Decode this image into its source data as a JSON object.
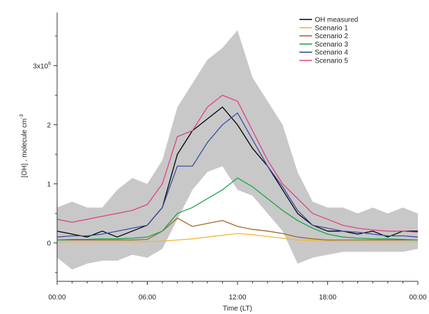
{
  "chart_data": {
    "type": "line",
    "xlabel": "Time (LT)",
    "ylabel": "[OH] , molecule cm",
    "ylabel_exponent": "-3",
    "xlim": [
      0,
      24
    ],
    "ylim": [
      -0.65,
      3.9
    ],
    "x_ticks": [
      {
        "value": 0,
        "label": "00:00"
      },
      {
        "value": 6,
        "label": "06:00"
      },
      {
        "value": 12,
        "label": "12:00"
      },
      {
        "value": 18,
        "label": "18:00"
      },
      {
        "value": 24,
        "label": "00:00"
      }
    ],
    "y_ticks": [
      {
        "value": 0,
        "label": "0"
      },
      {
        "value": 1,
        "label": "1"
      },
      {
        "value": 2,
        "label": "2"
      },
      {
        "value": 3,
        "label": "3x10",
        "exponent": "6"
      }
    ],
    "grid": false,
    "legend_position": "top-right",
    "uncertainty_band": {
      "color": "#c8c8c8",
      "x": [
        0,
        1,
        2,
        3,
        4,
        5,
        6,
        7,
        8,
        9,
        10,
        11,
        12,
        13,
        14,
        15,
        16,
        17,
        18,
        19,
        20,
        21,
        22,
        23,
        24
      ],
      "upper": [
        0.6,
        0.7,
        0.6,
        0.6,
        0.9,
        1.1,
        1.0,
        1.4,
        2.3,
        2.7,
        3.1,
        3.3,
        3.6,
        2.8,
        2.4,
        2.0,
        1.2,
        0.7,
        0.6,
        0.6,
        0.5,
        0.6,
        0.5,
        0.6,
        0.5
      ],
      "lower": [
        -0.25,
        -0.45,
        -0.35,
        -0.3,
        -0.3,
        -0.2,
        -0.25,
        -0.1,
        0.4,
        0.9,
        1.2,
        1.3,
        0.9,
        0.8,
        0.5,
        0.2,
        -0.35,
        -0.25,
        -0.2,
        -0.15,
        -0.15,
        -0.15,
        -0.15,
        -0.15,
        -0.1
      ]
    },
    "x": [
      0,
      1,
      2,
      3,
      4,
      5,
      6,
      7,
      8,
      9,
      10,
      11,
      12,
      13,
      14,
      15,
      16,
      17,
      18,
      19,
      20,
      21,
      22,
      23,
      24
    ],
    "series": [
      {
        "name": "OH measured",
        "color": "#000000",
        "values": [
          0.2,
          0.15,
          0.1,
          0.2,
          0.1,
          0.2,
          0.3,
          0.6,
          1.5,
          1.9,
          2.1,
          2.3,
          2.0,
          1.6,
          1.3,
          0.9,
          0.5,
          0.3,
          0.2,
          0.2,
          0.15,
          0.2,
          0.1,
          0.2,
          0.2
        ]
      },
      {
        "name": "Scenario 1",
        "color": "#f0b83a",
        "values": [
          0.02,
          0.02,
          0.02,
          0.02,
          0.02,
          0.02,
          0.02,
          0.03,
          0.05,
          0.07,
          0.1,
          0.13,
          0.16,
          0.14,
          0.11,
          0.08,
          0.05,
          0.04,
          0.03,
          0.02,
          0.02,
          0.02,
          0.02,
          0.02,
          0.02
        ]
      },
      {
        "name": "Scenario 2",
        "color": "#9c6a2a",
        "values": [
          0.05,
          0.05,
          0.05,
          0.05,
          0.05,
          0.05,
          0.06,
          0.2,
          0.42,
          0.28,
          0.33,
          0.38,
          0.28,
          0.23,
          0.2,
          0.16,
          0.1,
          0.07,
          0.05,
          0.05,
          0.05,
          0.05,
          0.05,
          0.05,
          0.05
        ]
      },
      {
        "name": "Scenario 3",
        "color": "#1ea34a",
        "values": [
          0.05,
          0.06,
          0.06,
          0.07,
          0.07,
          0.08,
          0.1,
          0.2,
          0.5,
          0.6,
          0.75,
          0.9,
          1.1,
          0.95,
          0.75,
          0.55,
          0.38,
          0.25,
          0.15,
          0.1,
          0.08,
          0.07,
          0.07,
          0.06,
          0.05
        ]
      },
      {
        "name": "Scenario 4",
        "color": "#3a4ea8",
        "values": [
          0.1,
          0.12,
          0.12,
          0.15,
          0.2,
          0.25,
          0.3,
          0.6,
          1.3,
          1.3,
          1.7,
          2.0,
          2.2,
          1.75,
          1.3,
          0.95,
          0.55,
          0.3,
          0.25,
          0.2,
          0.18,
          0.15,
          0.12,
          0.12,
          0.1
        ]
      },
      {
        "name": "Scenario 5",
        "color": "#e0408a",
        "values": [
          0.4,
          0.35,
          0.4,
          0.45,
          0.5,
          0.55,
          0.65,
          1.0,
          1.8,
          1.9,
          2.3,
          2.5,
          2.4,
          1.9,
          1.4,
          1.0,
          0.75,
          0.5,
          0.4,
          0.3,
          0.25,
          0.22,
          0.2,
          0.2,
          0.18
        ]
      }
    ]
  }
}
